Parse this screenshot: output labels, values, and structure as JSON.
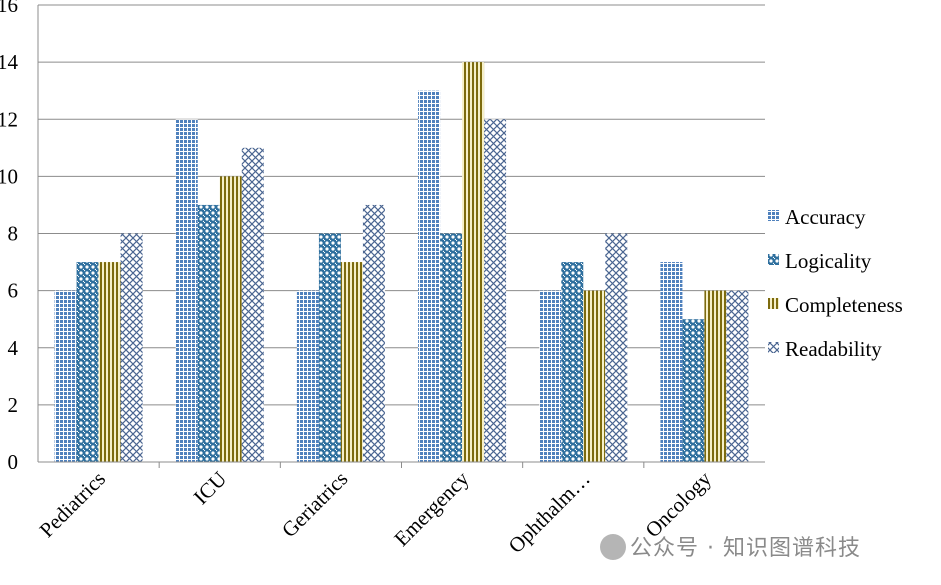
{
  "chart_data": {
    "type": "bar",
    "categories": [
      "Pediatrics",
      "ICU",
      "Geriatrics",
      "Emergency",
      "Ophthalm…",
      "Oncology"
    ],
    "series": [
      {
        "name": "Accuracy",
        "values": [
          6,
          12,
          6,
          13,
          6,
          7
        ],
        "color": "#4f81bd",
        "pattern": "small-grid"
      },
      {
        "name": "Logicality",
        "values": [
          7,
          9,
          8,
          8,
          7,
          5
        ],
        "color": "#2e7fb3",
        "pattern": "dotted-grid"
      },
      {
        "name": "Completeness",
        "values": [
          7,
          10,
          7,
          14,
          6,
          6
        ],
        "color": "#8c7a14",
        "pattern": "vertical-lines"
      },
      {
        "name": "Readability",
        "values": [
          8,
          11,
          9,
          12,
          8,
          6
        ],
        "color": "#4f6b9a",
        "pattern": "diagonal-cross"
      }
    ],
    "ylim": [
      0,
      16
    ],
    "yticks": [
      0,
      2,
      4,
      6,
      8,
      10,
      12,
      14,
      16
    ],
    "grid": true,
    "legend_position": "right",
    "title": "",
    "xlabel": "",
    "ylabel": ""
  },
  "watermark": {
    "icon": "wechat-icon",
    "text": "公众号 · 知识图谱科技"
  }
}
